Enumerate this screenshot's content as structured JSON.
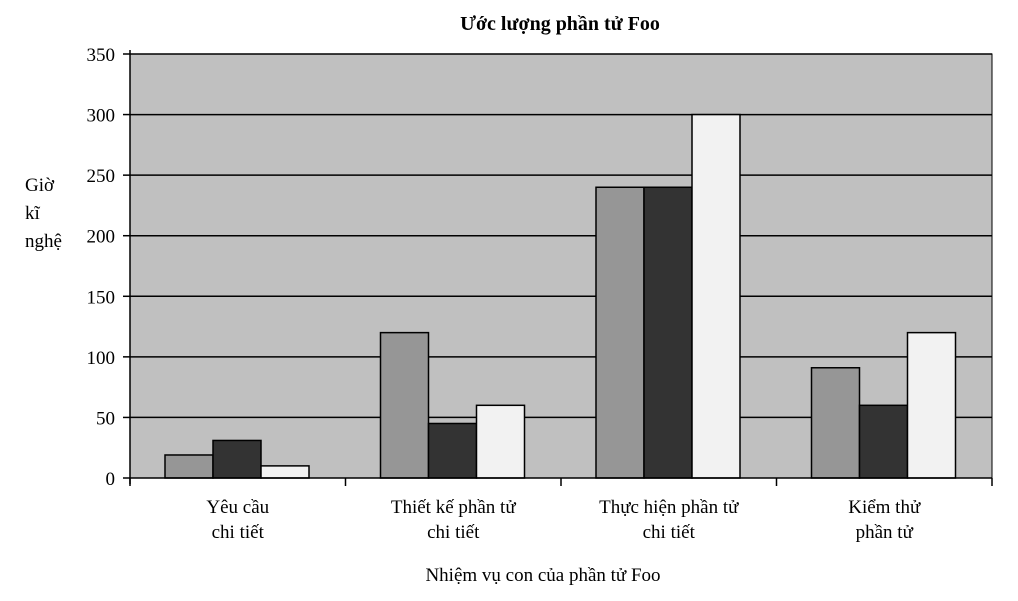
{
  "chart_data": {
    "type": "bar",
    "title": "Ước lượng phần tử Foo",
    "xlabel": "Nhiệm vụ con của phần tử Foo",
    "ylabel_lines": [
      "Giờ",
      "kĩ",
      "nghệ"
    ],
    "ylim": [
      0,
      350
    ],
    "yticks": [
      0,
      50,
      100,
      150,
      200,
      250,
      300,
      350
    ],
    "grid": true,
    "categories": [
      [
        "Yêu cầu",
        "chi tiết"
      ],
      [
        "Thiết kế phần tử",
        "chi tiết"
      ],
      [
        "Thực hiện phần tử",
        "chi tiết"
      ],
      [
        "Kiểm thử",
        "phần tử"
      ]
    ],
    "series": [
      {
        "values": [
          19,
          120,
          240,
          91
        ],
        "color": "#969696"
      },
      {
        "values": [
          31,
          45,
          240,
          60
        ],
        "color": "#333333"
      },
      {
        "values": [
          10,
          60,
          300,
          120
        ],
        "color": "#f2f2f2"
      }
    ],
    "plot_background": "#c0c0c0"
  }
}
